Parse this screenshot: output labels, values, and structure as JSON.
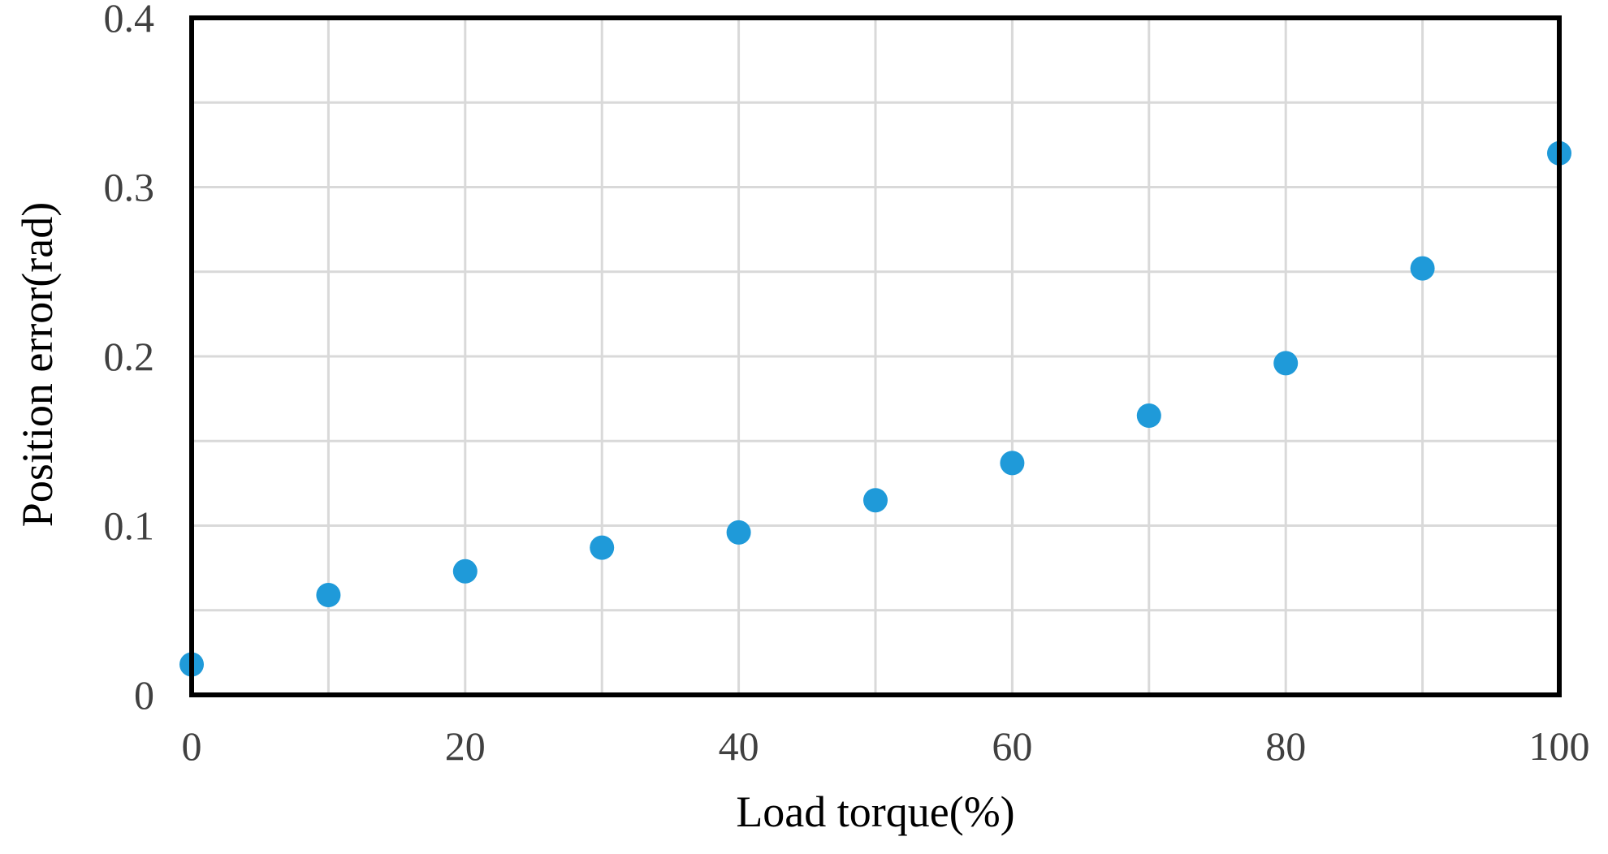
{
  "chart_data": {
    "type": "scatter",
    "title": "",
    "xlabel": "Load torque(%)",
    "ylabel": "Position error(rad)",
    "xlim": [
      0,
      100
    ],
    "ylim": [
      0,
      0.4
    ],
    "x_ticks": [
      0,
      20,
      40,
      60,
      80,
      100
    ],
    "x_tick_labels": [
      "0",
      "20",
      "40",
      "60",
      "80",
      "100"
    ],
    "y_ticks": [
      0,
      0.1,
      0.2,
      0.3,
      0.4
    ],
    "y_tick_labels": [
      "0",
      "0.1",
      "0.2",
      "0.3",
      "0.4"
    ],
    "x_gridlines": [
      0,
      10,
      20,
      30,
      40,
      50,
      60,
      70,
      80,
      90,
      100
    ],
    "y_gridlines": [
      0,
      0.05,
      0.1,
      0.15,
      0.2,
      0.25,
      0.3,
      0.35,
      0.4
    ],
    "grid": true,
    "legend": "none",
    "series": [
      {
        "color": "#1f9ad9",
        "points": [
          {
            "x": 0,
            "y": 0.018
          },
          {
            "x": 10,
            "y": 0.059
          },
          {
            "x": 20,
            "y": 0.073
          },
          {
            "x": 30,
            "y": 0.087
          },
          {
            "x": 40,
            "y": 0.096
          },
          {
            "x": 50,
            "y": 0.115
          },
          {
            "x": 60,
            "y": 0.137
          },
          {
            "x": 70,
            "y": 0.165
          },
          {
            "x": 80,
            "y": 0.196
          },
          {
            "x": 90,
            "y": 0.252
          },
          {
            "x": 100,
            "y": 0.32
          }
        ]
      }
    ],
    "colors": {
      "grid": "#d9d9d9",
      "frame": "#000000",
      "tick_text": "#404040"
    }
  }
}
